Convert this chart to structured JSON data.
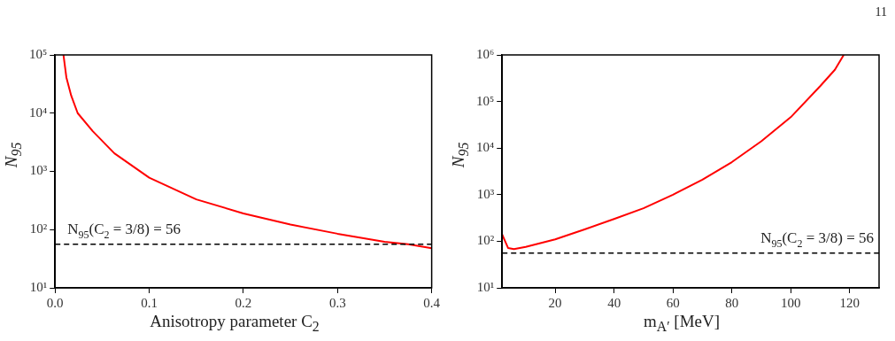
{
  "chart_data": [
    {
      "type": "line",
      "xlabel": "Anisotropy parameter C$_{2}$",
      "ylabel": "N$_{95}$",
      "log": "y",
      "grid": false,
      "legend": false,
      "marker": "none",
      "line_style": "solid",
      "xlim": [
        0,
        0.4
      ],
      "xticks": [
        {
          "value": 0,
          "label": "0.0"
        },
        0.1,
        0.2,
        0.3,
        0.4
      ],
      "ylim": [
        10,
        100000
      ],
      "yticks": [
        {
          "value": 10,
          "label": "10¹"
        },
        {
          "value": 100,
          "label": "10²"
        },
        {
          "value": 1000,
          "label": "10³"
        },
        {
          "value": 10000,
          "label": "10⁴"
        },
        {
          "value": 100000,
          "label": "10⁵"
        }
      ],
      "series": [
        {
          "color": "#ff0000",
          "x": [
            0.0089,
            0.012,
            0.0171,
            0.024,
            0.04,
            0.063,
            0.1,
            0.15,
            0.2,
            0.25,
            0.3,
            0.35,
            0.375,
            0.4
          ],
          "values": [
            100000,
            41000,
            20000,
            10000,
            4900,
            2040,
            780,
            330,
            190,
            122,
            85,
            62,
            56,
            48
          ]
        }
      ],
      "ref_lines": [
        {
          "axis": "y",
          "value": 56,
          "label": "N$_{95}$(C$_{2}$ = 3/8) = 56",
          "color": "#000000",
          "line_style": "dashed"
        }
      ]
    },
    {
      "type": "line",
      "xlabel": "m$_{A′}$ [MeV]",
      "ylabel": "N$_{95}$",
      "log": "y",
      "grid": false,
      "legend": false,
      "marker": "none",
      "line_style": "solid",
      "xlim": [
        2,
        130
      ],
      "xticks": [
        20,
        40,
        60,
        80,
        100,
        120
      ],
      "ylim": [
        10,
        1000000
      ],
      "yticks": [
        {
          "value": 10,
          "label": "10¹"
        },
        {
          "value": 100,
          "label": "10²"
        },
        {
          "value": 1000,
          "label": "10³"
        },
        {
          "value": 10000,
          "label": "10⁴"
        },
        {
          "value": 100000,
          "label": "10⁵"
        },
        {
          "value": 1000000,
          "label": "10⁶"
        }
      ],
      "series": [
        {
          "color": "#ff0000",
          "x": [
            2,
            4,
            6,
            10,
            20,
            30,
            40,
            50,
            60,
            70,
            80,
            90,
            100,
            110,
            115,
            118
          ],
          "values": [
            140,
            72,
            68,
            76,
            110,
            180,
            300,
            510,
            1000,
            2100,
            5000,
            14000,
            46000,
            214000,
            480000,
            1000000
          ]
        }
      ],
      "ref_lines": [
        {
          "axis": "y",
          "value": 56,
          "label": "N$_{95}$(C$_{2}$ = 3/8) = 56",
          "color": "#000000",
          "line_style": "dashed"
        }
      ],
      "annotations": [
        "11"
      ]
    }
  ]
}
